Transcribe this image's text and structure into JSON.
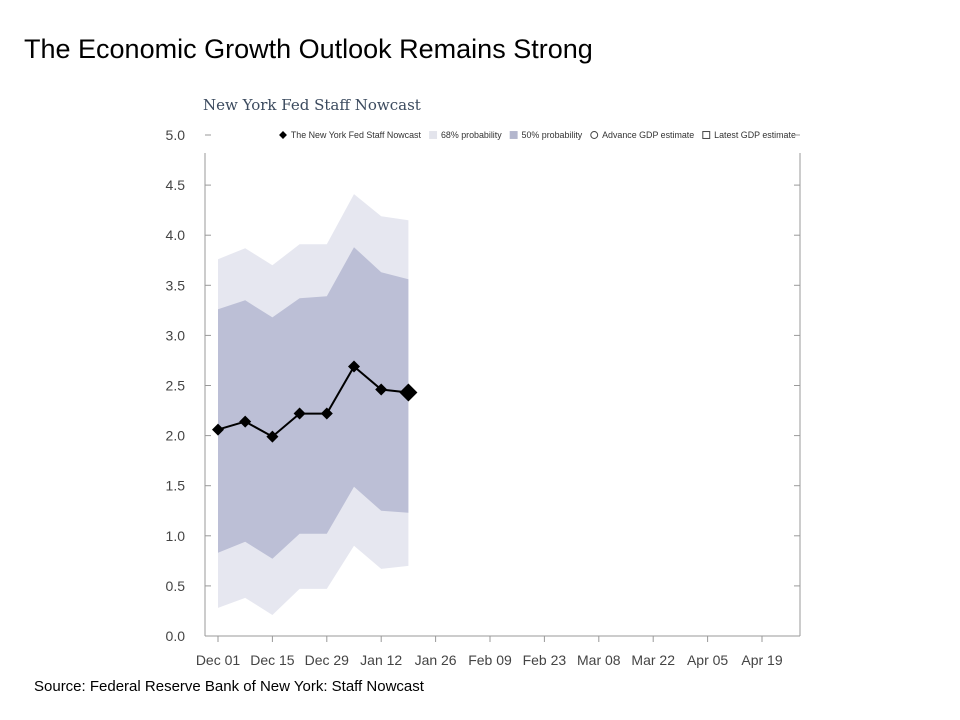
{
  "slide": {
    "title": "The Economic Growth Outlook Remains Strong",
    "source": "Source: Federal Reserve Bank of New York: Staff Nowcast"
  },
  "chart_data": {
    "type": "line",
    "title": "New York Fed Staff Nowcast",
    "xlabel": "",
    "ylabel": "",
    "ylim": [
      0,
      5
    ],
    "yticks": [
      "0.0",
      "0.5",
      "1.0",
      "1.5",
      "2.0",
      "2.5",
      "3.0",
      "3.5",
      "4.0",
      "4.5",
      "5.0"
    ],
    "x_tick_labels": [
      "Dec 01",
      "Dec 15",
      "Dec 29",
      "Jan 12",
      "Jan 26",
      "Feb 09",
      "Feb 23",
      "Mar 08",
      "Mar 22",
      "Apr 05",
      "Apr 19"
    ],
    "x": [
      "Dec 01",
      "Dec 08",
      "Dec 15",
      "Dec 22",
      "Dec 29",
      "Jan 05",
      "Jan 12",
      "Jan 19"
    ],
    "series": [
      {
        "name": "The New York Fed Staff Nowcast",
        "values": [
          2.06,
          2.14,
          1.99,
          2.22,
          2.22,
          2.69,
          2.46,
          2.43
        ]
      }
    ],
    "bands": {
      "p68": {
        "name": "68% probability",
        "low": [
          0.28,
          0.38,
          0.21,
          0.47,
          0.47,
          0.9,
          0.67,
          0.7
        ],
        "high": [
          3.76,
          3.87,
          3.7,
          3.91,
          3.91,
          4.41,
          4.19,
          4.15
        ]
      },
      "p50": {
        "name": "50% probability",
        "low": [
          0.83,
          0.94,
          0.77,
          1.02,
          1.02,
          1.49,
          1.25,
          1.23
        ],
        "high": [
          3.26,
          3.35,
          3.18,
          3.37,
          3.39,
          3.88,
          3.63,
          3.56
        ]
      }
    },
    "legend": [
      {
        "label": "The New York Fed Staff Nowcast",
        "marker": "diamond"
      },
      {
        "label": "68% probability",
        "marker": "light-square"
      },
      {
        "label": "50% probability",
        "marker": "dark-square"
      },
      {
        "label": "Advance GDP estimate",
        "marker": "circle"
      },
      {
        "label": "Latest GDP estimate",
        "marker": "square-outline"
      }
    ],
    "legend_position": "top",
    "grid": false,
    "colors": {
      "band68": "#e6e7f0",
      "band50": "#bcbfd6",
      "line": "#000000",
      "axis": "#999999"
    }
  }
}
